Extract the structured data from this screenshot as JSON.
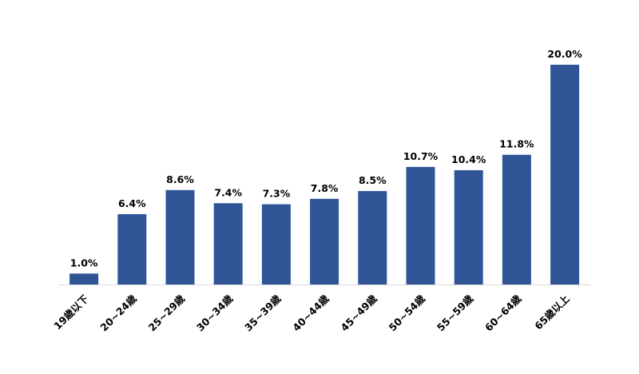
{
  "chart_data": {
    "type": "bar",
    "categories": [
      "19歳以下",
      "20~24歳",
      "25~29歳",
      "30~34歳",
      "35~39歳",
      "40~44歳",
      "45~49歳",
      "50~54歳",
      "55~59歳",
      "60~64歳",
      "65歳以上"
    ],
    "values": [
      1.0,
      6.4,
      8.6,
      7.4,
      7.3,
      7.8,
      8.5,
      10.7,
      10.4,
      11.8,
      20.0
    ],
    "data_labels": [
      "1.0%",
      "6.4%",
      "8.6%",
      "7.4%",
      "7.3%",
      "7.8%",
      "8.5%",
      "10.7%",
      "10.4%",
      "11.8%",
      "20.0%"
    ],
    "title": "",
    "xlabel": "",
    "ylabel": "",
    "ylim": [
      0,
      20.0
    ],
    "grid": false,
    "legend": "none",
    "bar_color": "#2f5597",
    "axis_color": "#d9d9d9"
  }
}
